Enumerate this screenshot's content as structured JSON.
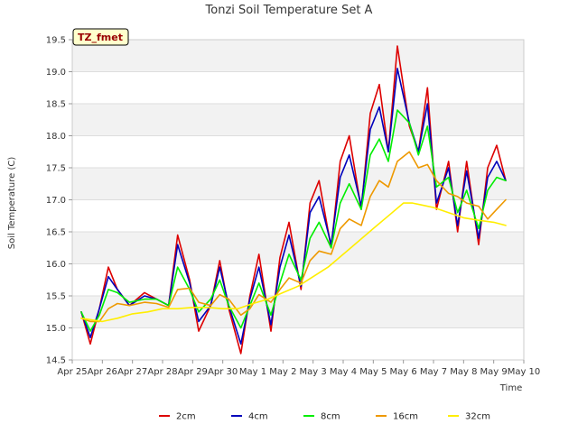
{
  "chart_data": {
    "type": "line",
    "title": "Tonzi Soil Temperature Set A",
    "xlabel": "Time",
    "ylabel": "Soil Temperature (C)",
    "tag": "TZ_fmet",
    "ylim": [
      14.5,
      19.5
    ],
    "yticks": [
      14.5,
      15.0,
      15.5,
      16.0,
      16.5,
      17.0,
      17.5,
      18.0,
      18.5,
      19.0,
      19.5
    ],
    "xlim": [
      0,
      15
    ],
    "xtick_labels": [
      "Apr 25",
      "Apr 26",
      "Apr 27",
      "Apr 28",
      "Apr 29",
      "Apr 30",
      "May 1",
      "May 2",
      "May 3",
      "May 4",
      "May 5",
      "May 6",
      "May 7",
      "May 8",
      "May 9",
      "May 10"
    ],
    "legend_position": "bottom-center",
    "series": [
      {
        "name": "2cm",
        "color": "#dd0000",
        "x": [
          0.3,
          0.6,
          0.9,
          1.2,
          1.5,
          1.9,
          2.4,
          2.8,
          3.2,
          3.5,
          3.9,
          4.2,
          4.6,
          4.9,
          5.2,
          5.6,
          5.9,
          6.2,
          6.6,
          6.9,
          7.2,
          7.6,
          7.9,
          8.2,
          8.6,
          8.9,
          9.2,
          9.6,
          9.9,
          10.2,
          10.5,
          10.8,
          11.2,
          11.5,
          11.8,
          12.1,
          12.5,
          12.8,
          13.1,
          13.5,
          13.8,
          14.1,
          14.4
        ],
        "values": [
          15.25,
          14.75,
          15.3,
          15.95,
          15.6,
          15.35,
          15.55,
          15.45,
          15.35,
          16.45,
          15.75,
          14.95,
          15.35,
          16.05,
          15.3,
          14.6,
          15.5,
          16.15,
          14.95,
          16.1,
          16.65,
          15.6,
          16.95,
          17.3,
          16.25,
          17.6,
          18.0,
          16.85,
          18.35,
          18.8,
          17.75,
          19.4,
          18.15,
          17.75,
          18.75,
          16.85,
          17.6,
          16.5,
          17.6,
          16.3,
          17.5,
          17.85,
          17.3
        ]
      },
      {
        "name": "4cm",
        "color": "#0000bb",
        "x": [
          0.3,
          0.6,
          0.9,
          1.2,
          1.5,
          1.9,
          2.4,
          2.8,
          3.2,
          3.5,
          3.9,
          4.2,
          4.6,
          4.9,
          5.2,
          5.6,
          5.9,
          6.2,
          6.6,
          6.9,
          7.2,
          7.6,
          7.9,
          8.2,
          8.6,
          8.9,
          9.2,
          9.6,
          9.9,
          10.2,
          10.5,
          10.8,
          11.2,
          11.5,
          11.8,
          12.1,
          12.5,
          12.8,
          13.1,
          13.5,
          13.8,
          14.1,
          14.4
        ],
        "values": [
          15.25,
          14.85,
          15.3,
          15.8,
          15.6,
          15.35,
          15.5,
          15.45,
          15.35,
          16.3,
          15.7,
          15.1,
          15.35,
          15.95,
          15.35,
          14.75,
          15.45,
          15.95,
          15.05,
          15.95,
          16.45,
          15.65,
          16.8,
          17.05,
          16.3,
          17.35,
          17.7,
          16.9,
          18.1,
          18.45,
          17.75,
          19.05,
          18.2,
          17.75,
          18.5,
          16.95,
          17.5,
          16.6,
          17.45,
          16.4,
          17.35,
          17.6,
          17.3
        ]
      },
      {
        "name": "8cm",
        "color": "#00ee00",
        "x": [
          0.3,
          0.6,
          0.9,
          1.2,
          1.5,
          1.9,
          2.4,
          2.8,
          3.2,
          3.5,
          3.9,
          4.2,
          4.6,
          4.9,
          5.2,
          5.6,
          5.9,
          6.2,
          6.6,
          6.9,
          7.2,
          7.6,
          7.9,
          8.2,
          8.6,
          8.9,
          9.2,
          9.6,
          9.9,
          10.2,
          10.5,
          10.8,
          11.2,
          11.5,
          11.8,
          12.1,
          12.5,
          12.8,
          13.1,
          13.5,
          13.8,
          14.1,
          14.4
        ],
        "values": [
          15.25,
          14.95,
          15.2,
          15.6,
          15.55,
          15.4,
          15.45,
          15.45,
          15.35,
          15.95,
          15.6,
          15.25,
          15.45,
          15.75,
          15.35,
          15.0,
          15.35,
          15.7,
          15.2,
          15.7,
          16.15,
          15.75,
          16.4,
          16.65,
          16.25,
          16.95,
          17.25,
          16.85,
          17.7,
          17.95,
          17.6,
          18.4,
          18.2,
          17.7,
          18.15,
          17.2,
          17.35,
          16.8,
          17.15,
          16.55,
          17.15,
          17.35,
          17.3
        ]
      },
      {
        "name": "16cm",
        "color": "#ee9900",
        "x": [
          0.3,
          0.6,
          0.9,
          1.2,
          1.5,
          1.9,
          2.4,
          2.8,
          3.2,
          3.5,
          3.9,
          4.2,
          4.6,
          4.9,
          5.2,
          5.6,
          5.9,
          6.2,
          6.6,
          6.9,
          7.2,
          7.6,
          7.9,
          8.2,
          8.6,
          8.9,
          9.2,
          9.6,
          9.9,
          10.2,
          10.5,
          10.8,
          11.2,
          11.5,
          11.8,
          12.1,
          12.5,
          12.8,
          13.1,
          13.5,
          13.8,
          14.1,
          14.4
        ],
        "values": [
          15.15,
          15.1,
          15.1,
          15.3,
          15.38,
          15.35,
          15.4,
          15.38,
          15.32,
          15.6,
          15.62,
          15.4,
          15.35,
          15.52,
          15.45,
          15.2,
          15.3,
          15.52,
          15.4,
          15.6,
          15.78,
          15.7,
          16.05,
          16.2,
          16.15,
          16.55,
          16.7,
          16.6,
          17.05,
          17.3,
          17.2,
          17.6,
          17.75,
          17.5,
          17.55,
          17.3,
          17.1,
          17.05,
          16.95,
          16.9,
          16.7,
          16.85,
          17.0
        ]
      },
      {
        "name": "32cm",
        "color": "#ffee00",
        "x": [
          0.3,
          1.0,
          1.5,
          2.0,
          2.5,
          3.0,
          3.5,
          4.0,
          4.5,
          5.0,
          5.5,
          6.0,
          6.5,
          7.0,
          7.5,
          8.0,
          8.5,
          9.0,
          9.5,
          10.0,
          10.5,
          11.0,
          11.3,
          11.6,
          12.0,
          12.5,
          13.0,
          13.5,
          14.0,
          14.4
        ],
        "values": [
          15.15,
          15.1,
          15.15,
          15.22,
          15.25,
          15.3,
          15.3,
          15.32,
          15.32,
          15.3,
          15.3,
          15.38,
          15.45,
          15.55,
          15.65,
          15.8,
          15.95,
          16.15,
          16.35,
          16.55,
          16.75,
          16.95,
          16.95,
          16.92,
          16.88,
          16.8,
          16.72,
          16.68,
          16.65,
          16.6
        ]
      }
    ]
  }
}
